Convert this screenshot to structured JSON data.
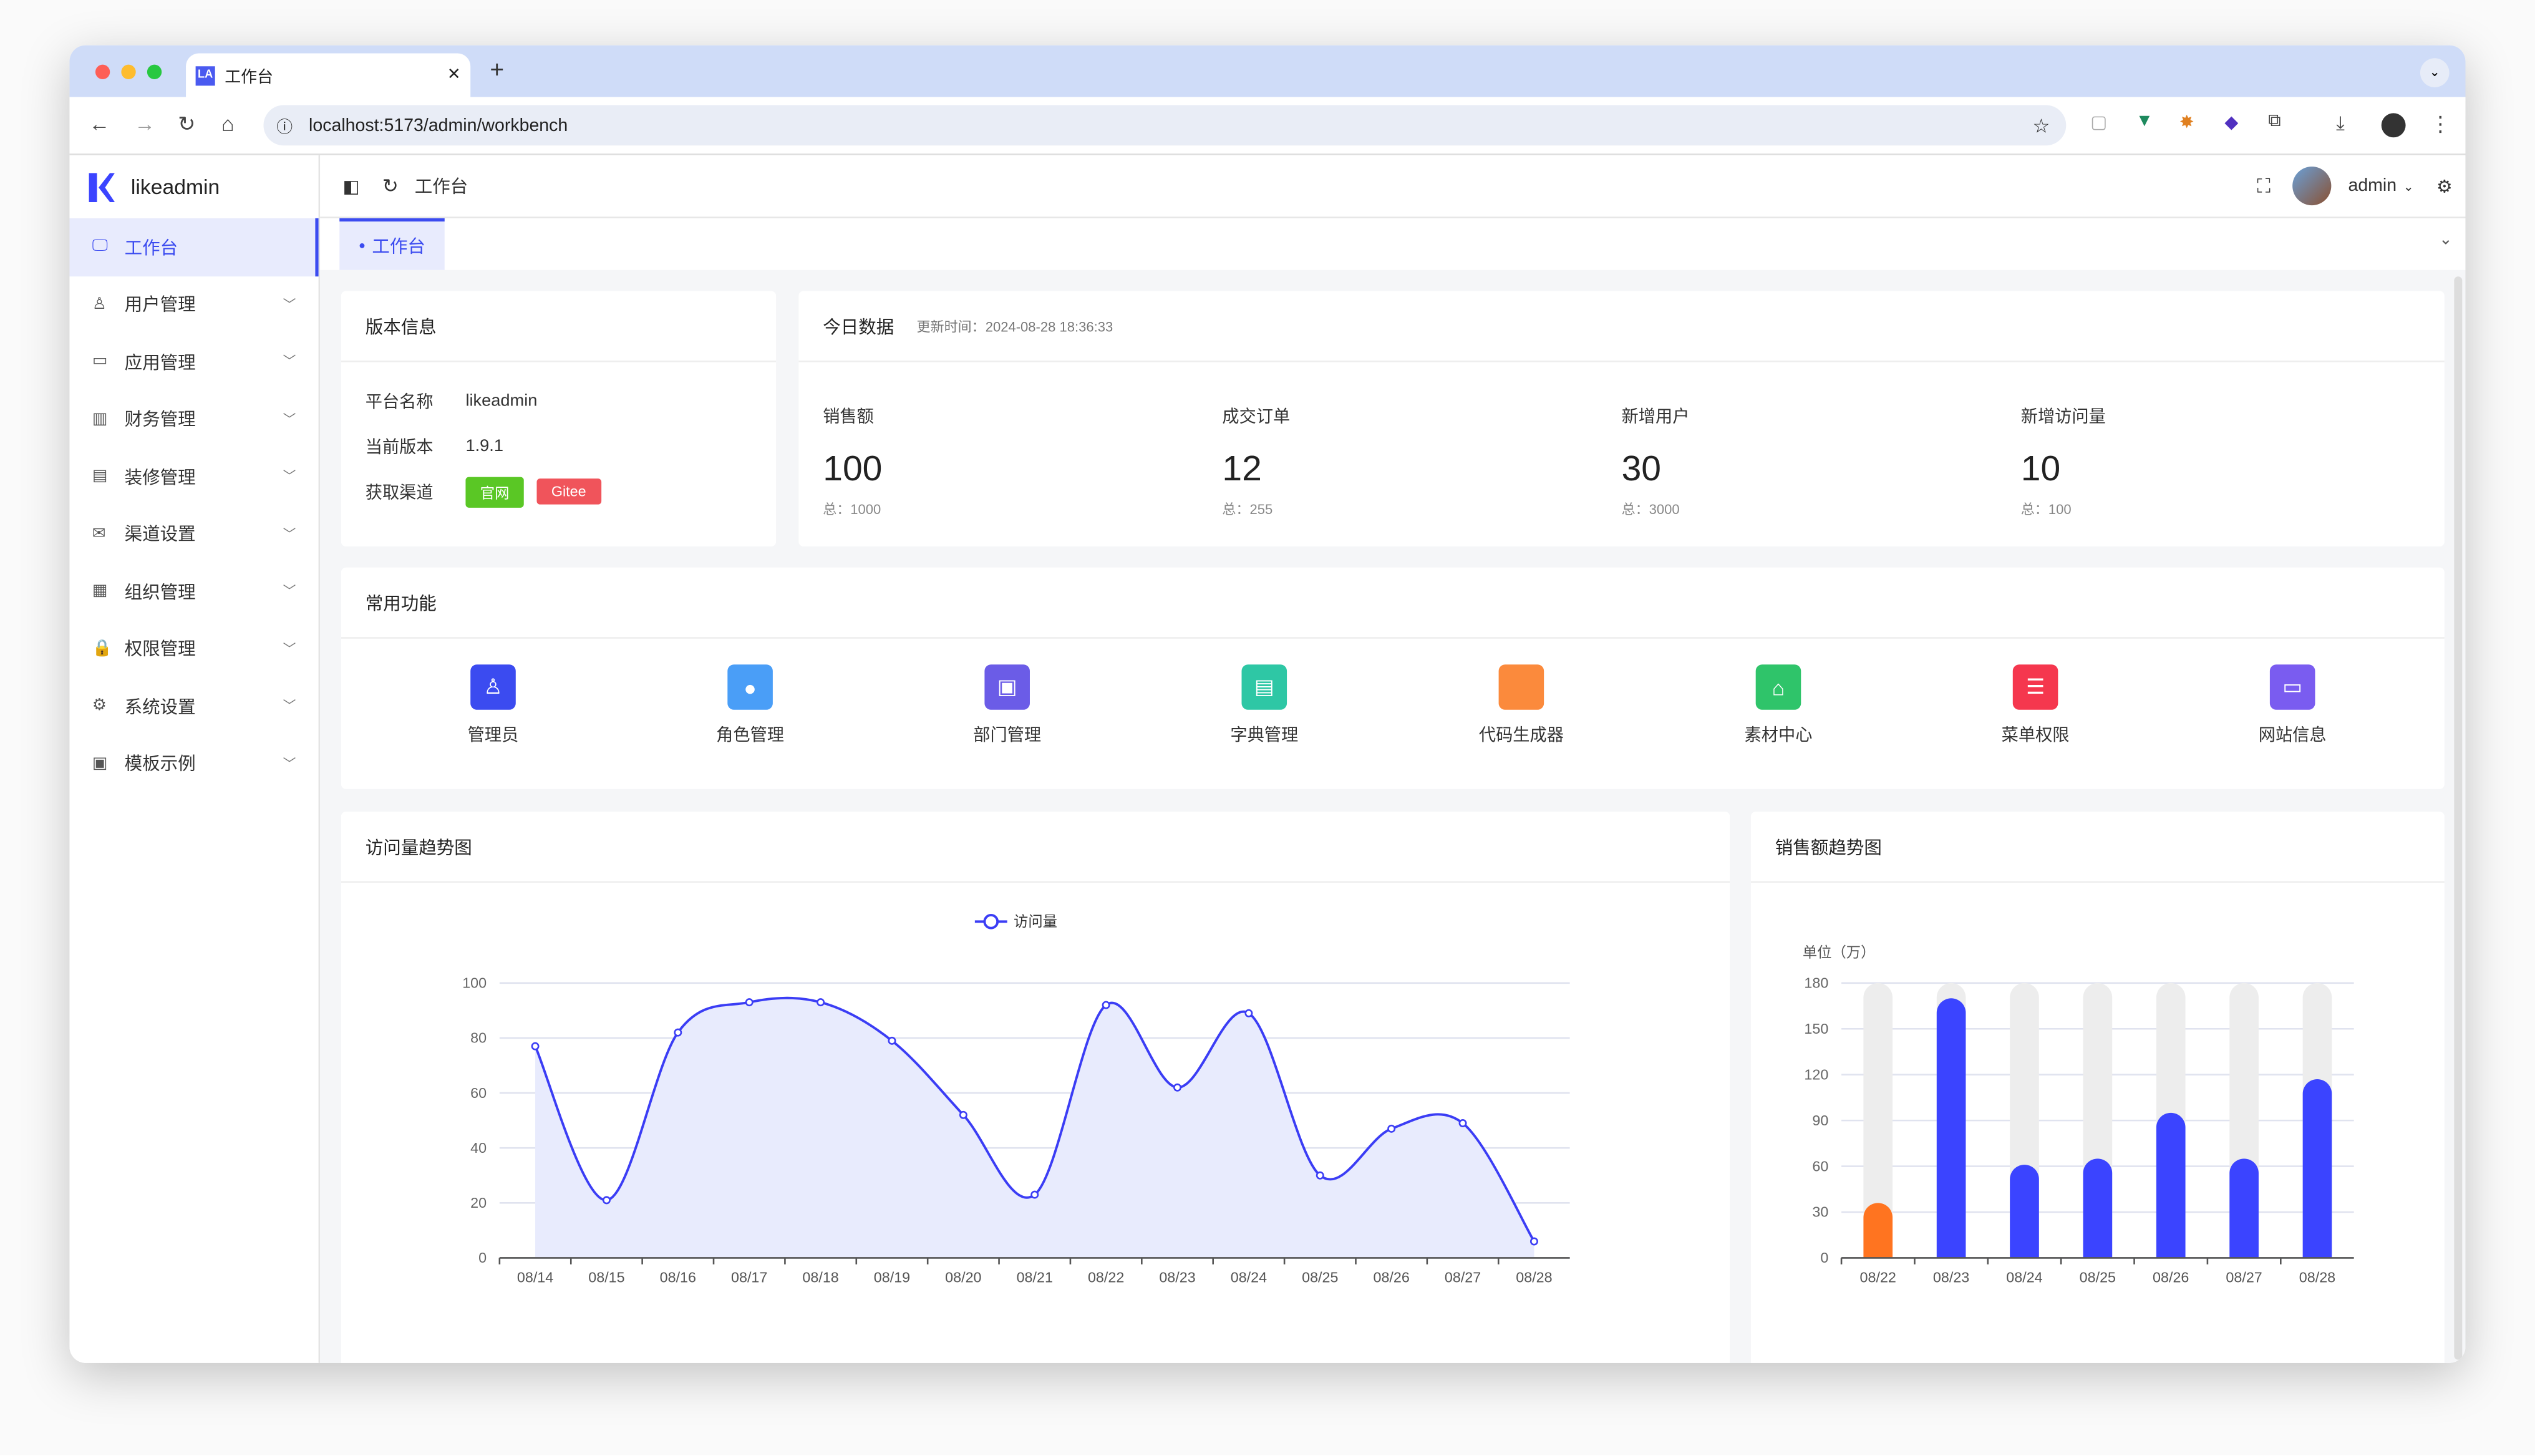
{
  "browser": {
    "tab_title": "工作台",
    "tab_favicon": "LA",
    "url": "localhost:5173/admin/workbench"
  },
  "app": {
    "name": "likeadmin",
    "breadcrumb": "工作台",
    "user": "admin",
    "page_tab": "工作台"
  },
  "sidebar": {
    "items": [
      {
        "label": "工作台",
        "icon": "monitor-icon",
        "active": true
      },
      {
        "label": "用户管理",
        "icon": "user-icon"
      },
      {
        "label": "应用管理",
        "icon": "app-icon"
      },
      {
        "label": "财务管理",
        "icon": "chart-icon"
      },
      {
        "label": "装修管理",
        "icon": "decorate-icon"
      },
      {
        "label": "渠道设置",
        "icon": "mail-icon"
      },
      {
        "label": "组织管理",
        "icon": "building-icon"
      },
      {
        "label": "权限管理",
        "icon": "lock-icon"
      },
      {
        "label": "系统设置",
        "icon": "gear-icon"
      },
      {
        "label": "模板示例",
        "icon": "template-icon"
      }
    ]
  },
  "version": {
    "title": "版本信息",
    "rows": [
      {
        "k": "平台名称",
        "v": "likeadmin"
      },
      {
        "k": "当前版本",
        "v": "1.9.1"
      }
    ],
    "channel_label": "获取渠道",
    "badge_official": "官网",
    "badge_gitee": "Gitee",
    "colors": {
      "official": "#5ac725",
      "gitee": "#f0545b"
    }
  },
  "today": {
    "title": "今日数据",
    "updated": "更新时间：2024-08-28 18:36:33",
    "stats": [
      {
        "label": "销售额",
        "value": "100",
        "total": "总：1000"
      },
      {
        "label": "成交订单",
        "value": "12",
        "total": "总：255"
      },
      {
        "label": "新增用户",
        "value": "30",
        "total": "总：3000"
      },
      {
        "label": "新增访问量",
        "value": "10",
        "total": "总：100"
      }
    ]
  },
  "common": {
    "title": "常用功能",
    "items": [
      {
        "label": "管理员",
        "color": "#3b4bf0"
      },
      {
        "label": "角色管理",
        "color": "#4a9ef7"
      },
      {
        "label": "部门管理",
        "color": "#6b5ce7"
      },
      {
        "label": "字典管理",
        "color": "#2ec7a5"
      },
      {
        "label": "代码生成器",
        "color": "#fb8a3c"
      },
      {
        "label": "素材中心",
        "color": "#2fc46a"
      },
      {
        "label": "菜单权限",
        "color": "#f5374e"
      },
      {
        "label": "网站信息",
        "color": "#7a5cf0"
      }
    ]
  },
  "chart_data": [
    {
      "type": "line",
      "title": "访问量趋势图",
      "legend": [
        "访问量"
      ],
      "legend_placement": "top-center",
      "categories": [
        "08/14",
        "08/15",
        "08/16",
        "08/17",
        "08/18",
        "08/19",
        "08/20",
        "08/21",
        "08/22",
        "08/23",
        "08/24",
        "08/25",
        "08/26",
        "08/27",
        "08/28"
      ],
      "series": [
        {
          "name": "访问量",
          "values": [
            77,
            21,
            82,
            93,
            93,
            79,
            52,
            23,
            92,
            62,
            89,
            30,
            47,
            49,
            6
          ]
        }
      ],
      "ylim": [
        0,
        100
      ],
      "yticks": [
        "0",
        "20",
        "40",
        "60",
        "80",
        "100"
      ],
      "grid": true,
      "smooth": true,
      "area": true,
      "color": "#3b3df5"
    },
    {
      "type": "bar",
      "title": "销售额趋势图",
      "ylabel": "单位（万）",
      "categories": [
        "08/22",
        "08/23",
        "08/24",
        "08/25",
        "08/26",
        "08/27",
        "08/28"
      ],
      "values": [
        36,
        170,
        61,
        65,
        95,
        65,
        117
      ],
      "ylim": [
        0,
        180
      ],
      "yticks": [
        "0",
        "30",
        "60",
        "90",
        "120",
        "150",
        "180"
      ],
      "grid": true,
      "background_bars": true,
      "colors": {
        "first": "#ff7420",
        "rest": "#3b44ff",
        "background": "#ededed"
      }
    }
  ]
}
